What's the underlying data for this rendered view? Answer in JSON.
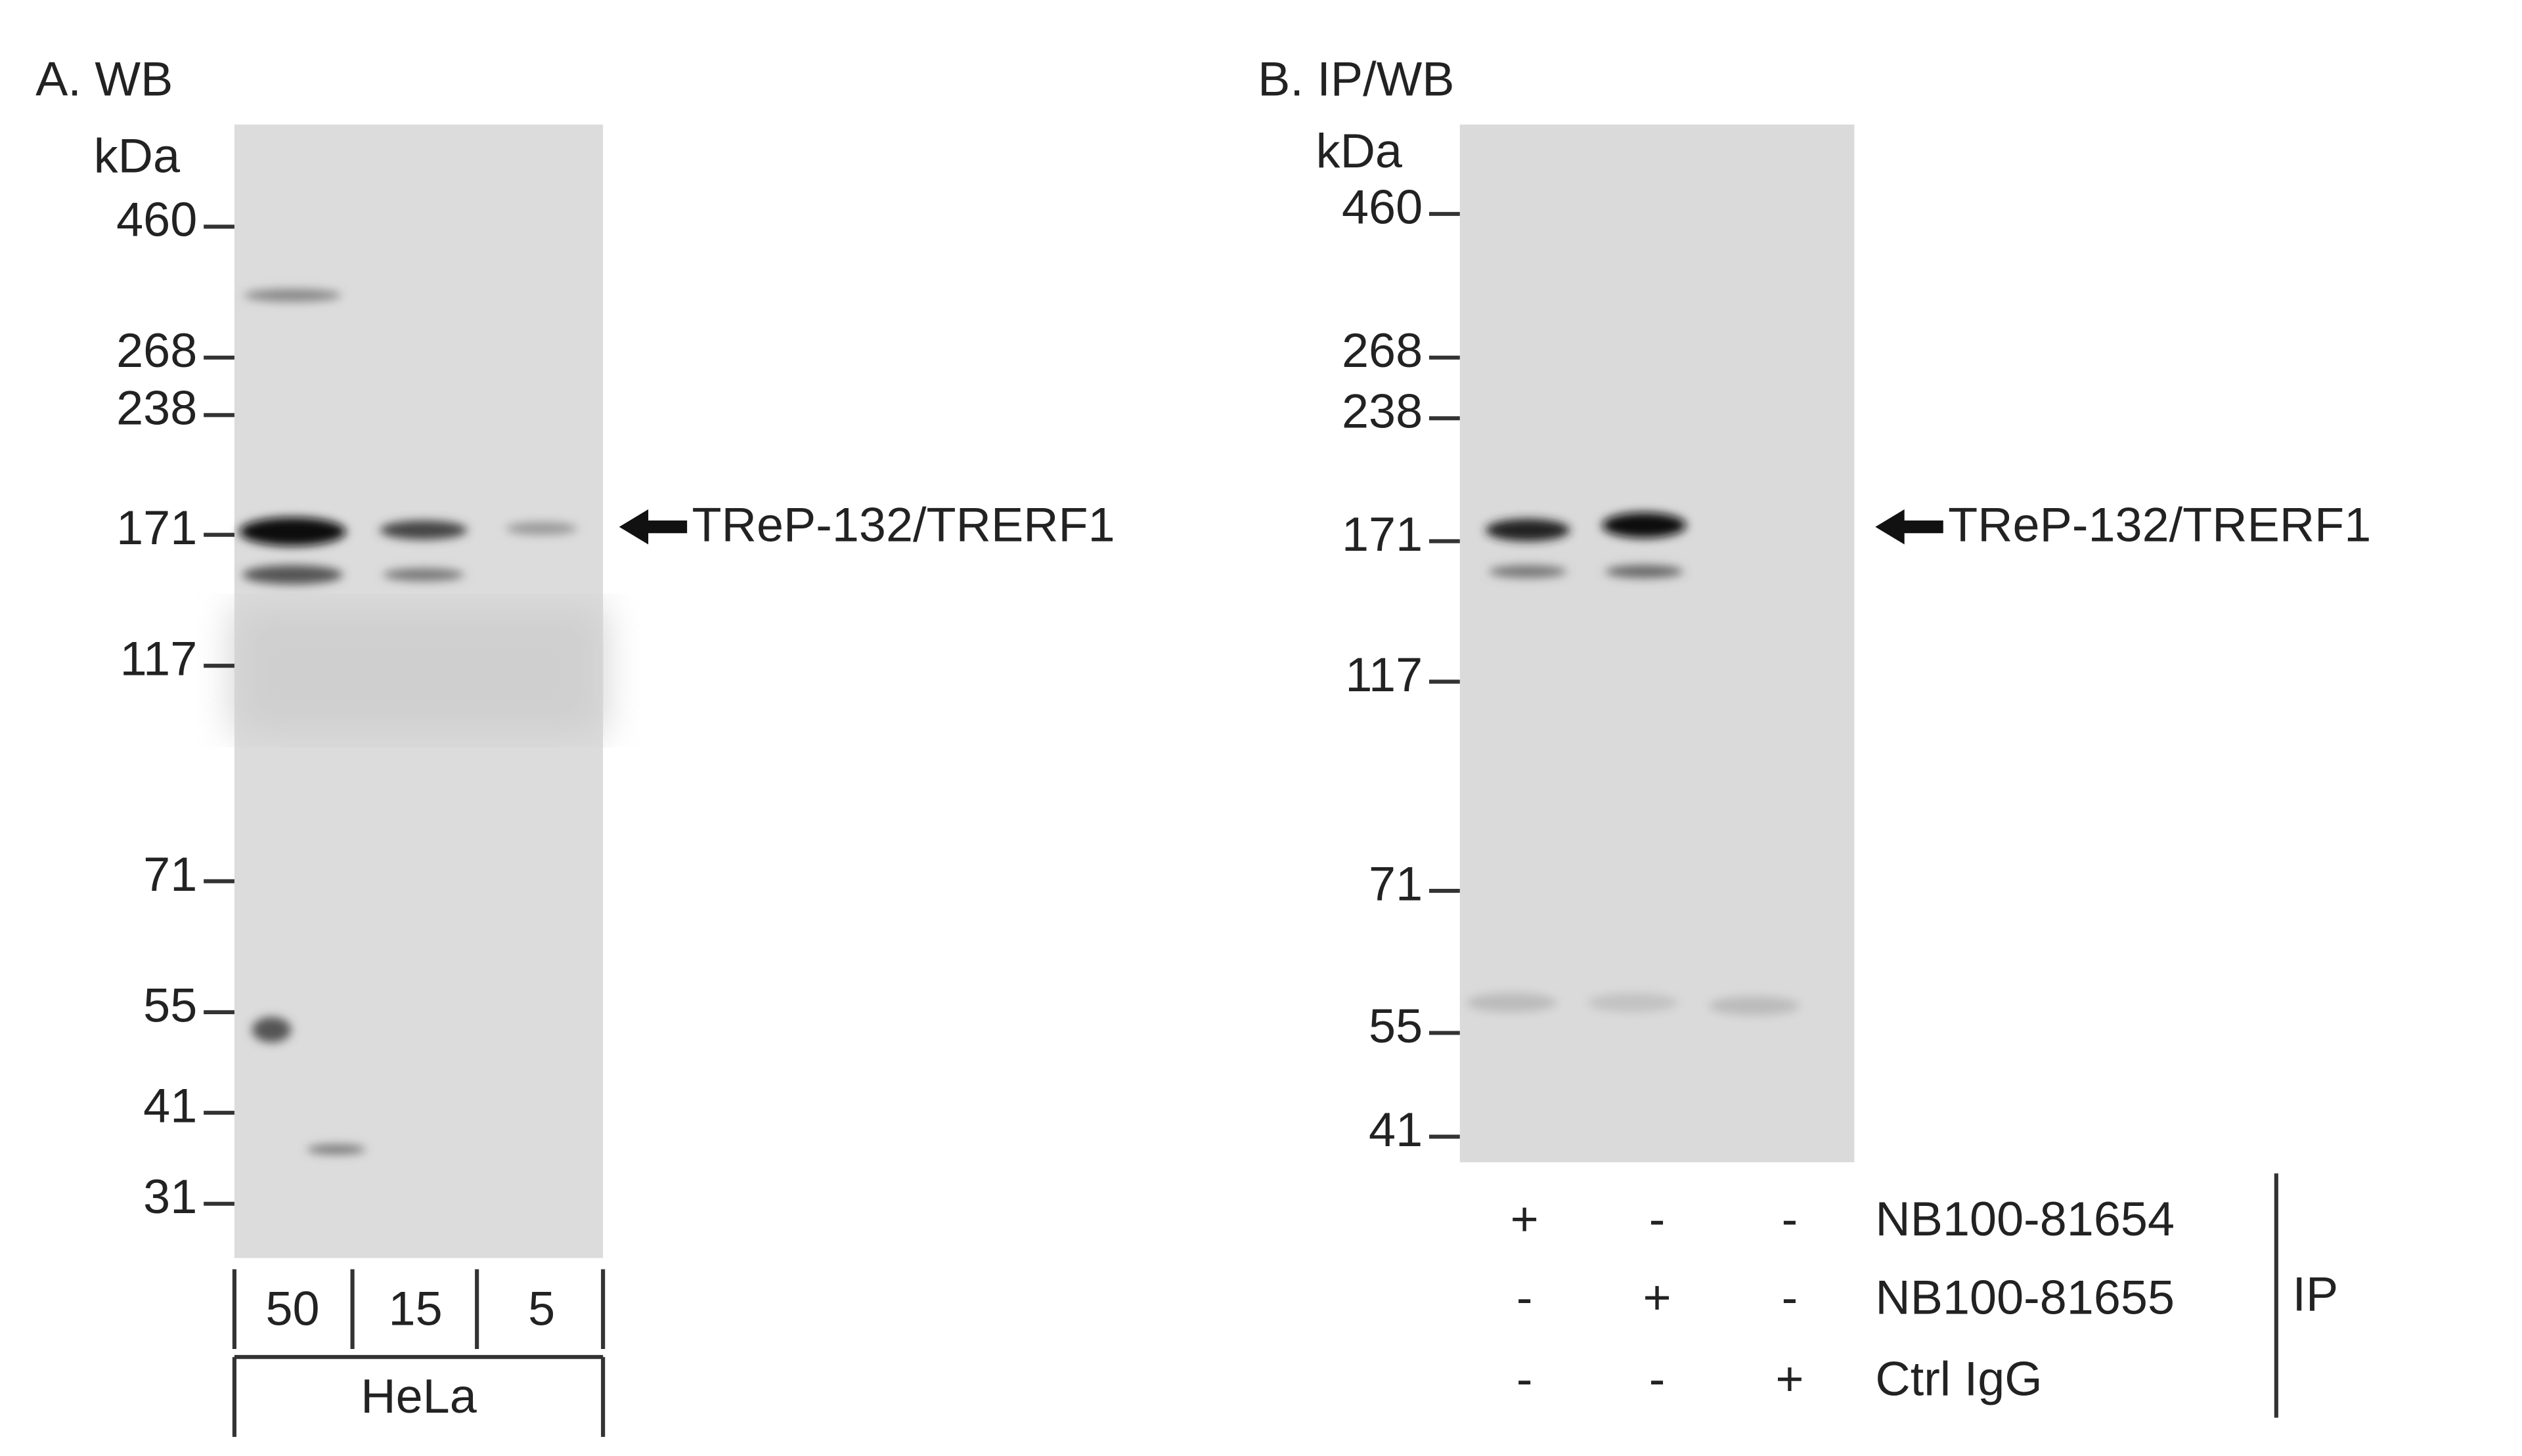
{
  "panel_a": {
    "title": "A. WB",
    "unit": "kDa",
    "markers": [
      "460",
      "268",
      "238",
      "171",
      "117",
      "71",
      "55",
      "41",
      "31"
    ],
    "band_label": "TReP-132/TRERF1",
    "lanes": [
      "50",
      "15",
      "5"
    ],
    "sample": "HeLa"
  },
  "panel_b": {
    "title": "B. IP/WB",
    "unit": "kDa",
    "markers": [
      "460",
      "268",
      "238",
      "171",
      "117",
      "71",
      "55",
      "41"
    ],
    "band_label": "TReP-132/TRERF1",
    "rows": [
      {
        "name": "NB100-81654",
        "signs": [
          "+",
          "-",
          "-"
        ]
      },
      {
        "name": "NB100-81655",
        "signs": [
          "-",
          "+",
          "-"
        ]
      },
      {
        "name": "Ctrl IgG",
        "signs": [
          "-",
          "-",
          "+"
        ]
      }
    ],
    "group_label": "IP"
  }
}
